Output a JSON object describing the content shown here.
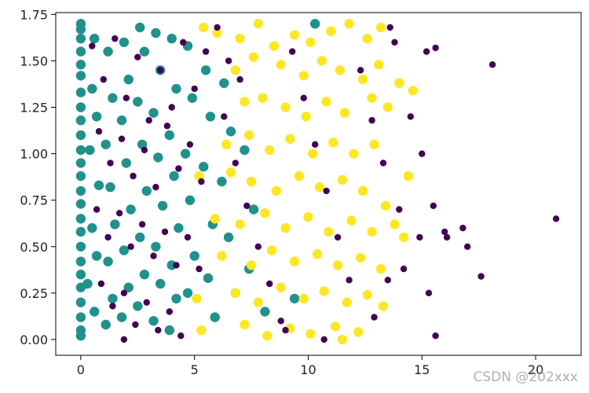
{
  "chart_data": {
    "type": "scatter",
    "title": "",
    "xlabel": "",
    "ylabel": "",
    "xlim": [
      -1.1,
      22
    ],
    "ylim": [
      -0.085,
      1.76
    ],
    "x_ticks": [
      0,
      5,
      10,
      15,
      20
    ],
    "x_tick_labels": [
      "0",
      "5",
      "10",
      "15",
      "20"
    ],
    "y_ticks": [
      0.0,
      0.25,
      0.5,
      0.75,
      1.0,
      1.25,
      1.5,
      1.75
    ],
    "y_tick_labels": [
      "0.00",
      "0.25",
      "0.50",
      "0.75",
      "1.00",
      "1.25",
      "1.50",
      "1.75"
    ],
    "grid": false,
    "legend": "none",
    "series": [
      {
        "color": "#21918c",
        "marker_size": "large",
        "points": [
          [
            0,
            1.7
          ],
          [
            0,
            1.67
          ],
          [
            0,
            1.62
          ],
          [
            0,
            1.55
          ],
          [
            0,
            1.48
          ],
          [
            0,
            1.42
          ],
          [
            0,
            1.33
          ],
          [
            0,
            1.25
          ],
          [
            0,
            1.18
          ],
          [
            0,
            1.1
          ],
          [
            0,
            1.02
          ],
          [
            0,
            0.95
          ],
          [
            0,
            0.88
          ],
          [
            0,
            0.8
          ],
          [
            0,
            0.73
          ],
          [
            0,
            0.65
          ],
          [
            0,
            0.58
          ],
          [
            0,
            0.5
          ],
          [
            0,
            0.42
          ],
          [
            0,
            0.35
          ],
          [
            0,
            0.28
          ],
          [
            0,
            0.2
          ],
          [
            0,
            0.12
          ],
          [
            0,
            0.05
          ],
          [
            0,
            0.02
          ],
          [
            0.6,
            1.62
          ],
          [
            0.5,
            1.35
          ],
          [
            0.7,
            1.2
          ],
          [
            0.4,
            1.02
          ],
          [
            0.8,
            0.83
          ],
          [
            0.5,
            0.6
          ],
          [
            0.7,
            0.45
          ],
          [
            0.3,
            0.3
          ],
          [
            0.6,
            0.15
          ],
          [
            1.2,
            1.55
          ],
          [
            1.4,
            1.3
          ],
          [
            1.1,
            1.05
          ],
          [
            1.3,
            0.82
          ],
          [
            1.5,
            0.62
          ],
          [
            1.2,
            0.42
          ],
          [
            1.4,
            0.22
          ],
          [
            1.1,
            0.08
          ],
          [
            1.9,
            1.6
          ],
          [
            2.1,
            1.4
          ],
          [
            1.8,
            1.18
          ],
          [
            2.0,
            0.95
          ],
          [
            2.2,
            0.7
          ],
          [
            1.9,
            0.48
          ],
          [
            2.1,
            0.28
          ],
          [
            1.8,
            0.12
          ],
          [
            2.6,
            1.68
          ],
          [
            2.8,
            1.55
          ],
          [
            2.5,
            1.28
          ],
          [
            2.7,
            1.05
          ],
          [
            2.9,
            0.8
          ],
          [
            2.6,
            0.55
          ],
          [
            2.8,
            0.35
          ],
          [
            2.5,
            0.18
          ],
          [
            3.3,
            1.65
          ],
          [
            3.5,
            1.45
          ],
          [
            3.2,
            1.22
          ],
          [
            3.4,
            0.98
          ],
          [
            3.6,
            0.72
          ],
          [
            3.3,
            0.5
          ],
          [
            3.5,
            0.3
          ],
          [
            3.2,
            0.1
          ],
          [
            4.0,
            1.62
          ],
          [
            4.2,
            1.35
          ],
          [
            3.9,
            1.1
          ],
          [
            4.1,
            0.88
          ],
          [
            4.3,
            0.6
          ],
          [
            4.0,
            0.4
          ],
          [
            4.2,
            0.22
          ],
          [
            3.9,
            0.05
          ],
          [
            4.7,
            1.58
          ],
          [
            4.9,
            1.3
          ],
          [
            4.6,
            1.0
          ],
          [
            4.8,
            0.75
          ],
          [
            5.0,
            0.45
          ],
          [
            4.7,
            0.25
          ],
          [
            5.5,
            1.45
          ],
          [
            5.7,
            1.2
          ],
          [
            5.4,
            0.93
          ],
          [
            5.8,
            0.62
          ],
          [
            5.6,
            0.33
          ],
          [
            5.9,
            0.12
          ],
          [
            6.3,
            1.38
          ],
          [
            6.6,
            1.12
          ],
          [
            6.2,
            0.85
          ],
          [
            6.5,
            0.55
          ],
          [
            6.8,
            0.25
          ],
          [
            7.2,
            1.02
          ],
          [
            7.6,
            0.7
          ],
          [
            7.4,
            0.38
          ],
          [
            8.1,
            0.15
          ],
          [
            9.4,
            0.22
          ],
          [
            10.3,
            1.7
          ]
        ]
      },
      {
        "color": "#fde725",
        "marker_size": "large",
        "points": [
          [
            5.4,
            1.68
          ],
          [
            6.0,
            1.65
          ],
          [
            7.0,
            1.62
          ],
          [
            7.8,
            1.7
          ],
          [
            8.5,
            1.58
          ],
          [
            9.4,
            1.64
          ],
          [
            10.1,
            1.6
          ],
          [
            11.0,
            1.66
          ],
          [
            11.8,
            1.7
          ],
          [
            12.6,
            1.62
          ],
          [
            13.2,
            1.68
          ],
          [
            6.8,
            1.45
          ],
          [
            7.6,
            1.52
          ],
          [
            8.8,
            1.48
          ],
          [
            9.8,
            1.42
          ],
          [
            10.6,
            1.5
          ],
          [
            11.4,
            1.45
          ],
          [
            12.4,
            1.4
          ],
          [
            13.1,
            1.48
          ],
          [
            14.0,
            1.38
          ],
          [
            14.6,
            1.34
          ],
          [
            7.2,
            1.28
          ],
          [
            8.0,
            1.3
          ],
          [
            9.0,
            1.25
          ],
          [
            9.9,
            1.2
          ],
          [
            10.8,
            1.28
          ],
          [
            11.6,
            1.22
          ],
          [
            12.8,
            1.3
          ],
          [
            13.5,
            1.25
          ],
          [
            6.4,
            1.05
          ],
          [
            7.4,
            1.1
          ],
          [
            8.3,
            1.02
          ],
          [
            9.2,
            1.08
          ],
          [
            10.2,
            1.0
          ],
          [
            11.1,
            1.06
          ],
          [
            12.0,
            1.0
          ],
          [
            12.9,
            1.05
          ],
          [
            5.2,
            0.88
          ],
          [
            6.6,
            0.9
          ],
          [
            7.5,
            0.85
          ],
          [
            8.6,
            0.8
          ],
          [
            9.6,
            0.88
          ],
          [
            10.5,
            0.82
          ],
          [
            11.5,
            0.86
          ],
          [
            12.4,
            0.8
          ],
          [
            13.4,
            0.72
          ],
          [
            14.4,
            0.88
          ],
          [
            5.9,
            0.65
          ],
          [
            7.0,
            0.62
          ],
          [
            8.1,
            0.68
          ],
          [
            9.0,
            0.6
          ],
          [
            10.0,
            0.66
          ],
          [
            10.9,
            0.58
          ],
          [
            11.9,
            0.64
          ],
          [
            12.8,
            0.58
          ],
          [
            13.8,
            0.62
          ],
          [
            14.2,
            0.55
          ],
          [
            6.2,
            0.45
          ],
          [
            7.5,
            0.4
          ],
          [
            8.4,
            0.48
          ],
          [
            9.4,
            0.42
          ],
          [
            10.4,
            0.46
          ],
          [
            11.3,
            0.4
          ],
          [
            12.3,
            0.44
          ],
          [
            13.2,
            0.38
          ],
          [
            5.1,
            0.22
          ],
          [
            6.8,
            0.25
          ],
          [
            7.8,
            0.2
          ],
          [
            8.8,
            0.28
          ],
          [
            9.8,
            0.22
          ],
          [
            10.7,
            0.26
          ],
          [
            11.7,
            0.2
          ],
          [
            12.6,
            0.24
          ],
          [
            13.3,
            0.18
          ],
          [
            5.3,
            0.05
          ],
          [
            7.2,
            0.08
          ],
          [
            8.2,
            0.02
          ],
          [
            9.2,
            0.06
          ],
          [
            10.1,
            0.03
          ],
          [
            11.2,
            0.07
          ],
          [
            11.5,
            0.0
          ],
          [
            12.2,
            0.04
          ]
        ]
      },
      {
        "color": "#440154",
        "marker_size": "small",
        "points": [
          [
            0.5,
            1.58
          ],
          [
            1.0,
            1.4
          ],
          [
            1.5,
            1.62
          ],
          [
            2.0,
            1.3
          ],
          [
            2.5,
            1.52
          ],
          [
            3.0,
            1.18
          ],
          [
            3.5,
            1.45
          ],
          [
            4.0,
            1.25
          ],
          [
            4.5,
            1.6
          ],
          [
            5.0,
            1.35
          ],
          [
            5.5,
            1.55
          ],
          [
            6.0,
            1.68
          ],
          [
            6.5,
            1.5
          ],
          [
            7.0,
            1.4
          ],
          [
            0.8,
            1.12
          ],
          [
            1.3,
            0.95
          ],
          [
            1.8,
            1.08
          ],
          [
            2.3,
            0.88
          ],
          [
            2.8,
            1.02
          ],
          [
            3.3,
            0.82
          ],
          [
            3.8,
            1.15
          ],
          [
            4.3,
            0.92
          ],
          [
            4.8,
            1.05
          ],
          [
            5.3,
            0.85
          ],
          [
            0.7,
            0.7
          ],
          [
            1.2,
            0.55
          ],
          [
            1.7,
            0.68
          ],
          [
            2.2,
            0.5
          ],
          [
            2.7,
            0.62
          ],
          [
            3.2,
            0.45
          ],
          [
            3.7,
            0.58
          ],
          [
            4.2,
            0.4
          ],
          [
            4.7,
            0.55
          ],
          [
            5.2,
            0.38
          ],
          [
            0.9,
            0.3
          ],
          [
            1.4,
            0.18
          ],
          [
            1.9,
            0.25
          ],
          [
            2.4,
            0.08
          ],
          [
            2.9,
            0.2
          ],
          [
            3.4,
            0.05
          ],
          [
            3.9,
            0.15
          ],
          [
            4.4,
            0.02
          ],
          [
            1.9,
            0.0
          ],
          [
            6.3,
            1.2
          ],
          [
            6.8,
            0.95
          ],
          [
            7.3,
            0.72
          ],
          [
            7.8,
            0.5
          ],
          [
            8.3,
            0.3
          ],
          [
            8.8,
            0.1
          ],
          [
            9.3,
            1.55
          ],
          [
            9.8,
            1.3
          ],
          [
            10.3,
            1.05
          ],
          [
            10.8,
            0.8
          ],
          [
            11.3,
            0.55
          ],
          [
            11.8,
            0.32
          ],
          [
            12.3,
            1.45
          ],
          [
            12.8,
            1.18
          ],
          [
            13.3,
            0.95
          ],
          [
            13.8,
            1.6
          ],
          [
            13.6,
            1.68
          ],
          [
            14.5,
            1.2
          ],
          [
            15.0,
            1.0
          ],
          [
            15.5,
            0.72
          ],
          [
            16.0,
            0.58
          ],
          [
            16.1,
            0.55
          ],
          [
            15.2,
            1.55
          ],
          [
            15.3,
            0.25
          ],
          [
            14.9,
            0.55
          ],
          [
            14.2,
            0.38
          ],
          [
            16.8,
            0.6
          ],
          [
            17.0,
            0.5
          ],
          [
            17.6,
            0.34
          ],
          [
            18.1,
            1.48
          ],
          [
            15.6,
            0.02
          ],
          [
            15.6,
            1.57
          ],
          [
            9.0,
            0.05
          ],
          [
            10.7,
            0.0
          ],
          [
            12.9,
            0.12
          ],
          [
            13.5,
            0.32
          ],
          [
            14.0,
            0.7
          ],
          [
            20.9,
            0.65
          ]
        ]
      }
    ]
  },
  "watermark": "CSDN @202xxx"
}
